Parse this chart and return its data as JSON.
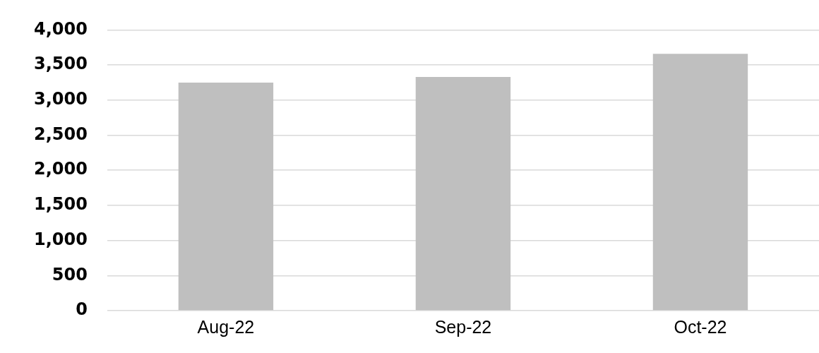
{
  "chart_data": {
    "type": "bar",
    "categories": [
      "Aug-22",
      "Sep-22",
      "Oct-22"
    ],
    "values": [
      3250,
      3330,
      3660
    ],
    "color": "#bfbfbf",
    "ylim": [
      0,
      4000
    ],
    "yticks": [
      0,
      500,
      {
        "value": 1000,
        "label": "1,000"
      },
      {
        "value": 1500,
        "label": "1,500"
      },
      {
        "value": 2000,
        "label": "2,000"
      },
      {
        "value": 2500,
        "label": "2,500"
      },
      {
        "value": 3000,
        "label": "3,000"
      },
      {
        "value": 3500,
        "label": "3,500"
      },
      {
        "value": 4000,
        "label": "4,000"
      }
    ],
    "grid": "y",
    "legend": false
  }
}
